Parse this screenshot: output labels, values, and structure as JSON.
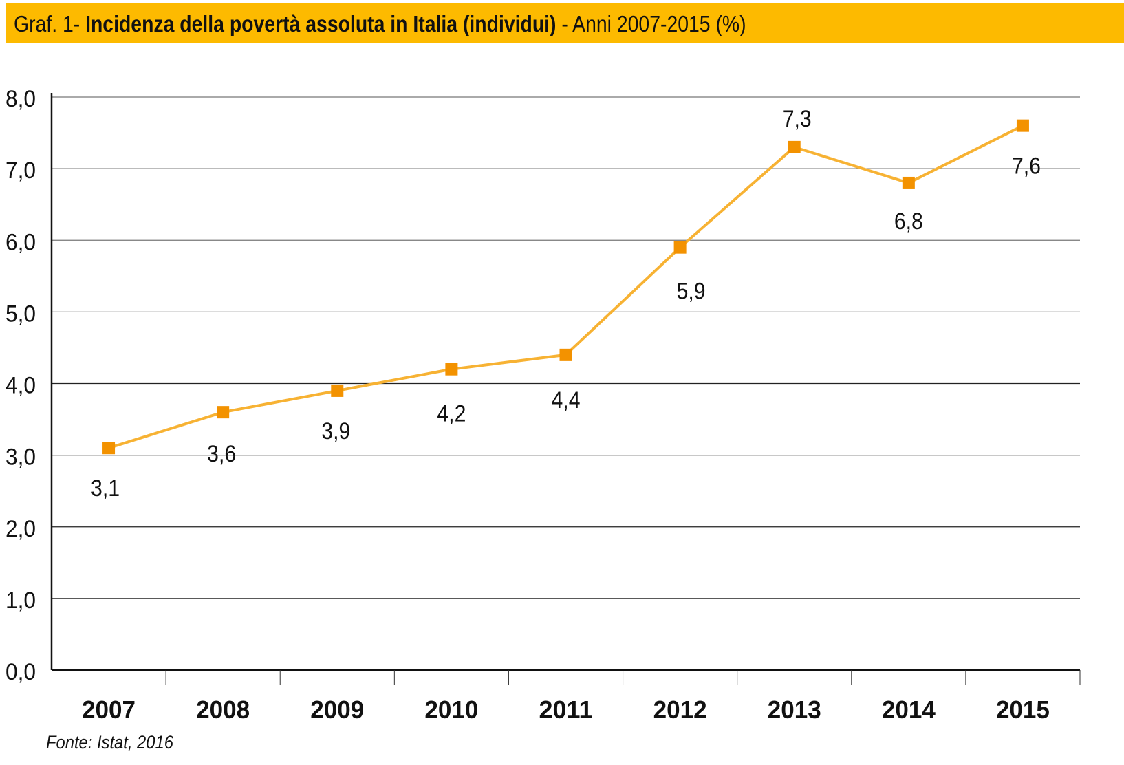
{
  "header": {
    "prefix": "Graf. 1- ",
    "title_bold": "Incidenza della povertà assoluta in Italia (individui)",
    "suffix": " - Anni 2007-2015 (%)",
    "background_color": "#FDBA00"
  },
  "source": "Fonte: Istat, 2016",
  "chart_data": {
    "type": "line",
    "title": "Graf. 1- Incidenza della povertà assoluta in Italia (individui) - Anni 2007-2015 (%)",
    "categories": [
      "2007",
      "2008",
      "2009",
      "2010",
      "2011",
      "2012",
      "2013",
      "2014",
      "2015"
    ],
    "values": [
      3.1,
      3.6,
      3.9,
      4.2,
      4.4,
      5.9,
      7.3,
      6.8,
      7.6
    ],
    "data_labels": [
      "3,1",
      "3,6",
      "3,9",
      "4,2",
      "4,4",
      "5,9",
      "7,3",
      "6,8",
      "7,6"
    ],
    "yticks": [
      "0,0",
      "1,0",
      "2,0",
      "3,0",
      "4,0",
      "5,0",
      "6,0",
      "7,0",
      "8,0"
    ],
    "ylim": [
      0,
      8
    ],
    "grid": true,
    "line_color": "#F7B233",
    "marker_color": "#F39200",
    "marker": "square",
    "xlabel": "",
    "ylabel": ""
  }
}
